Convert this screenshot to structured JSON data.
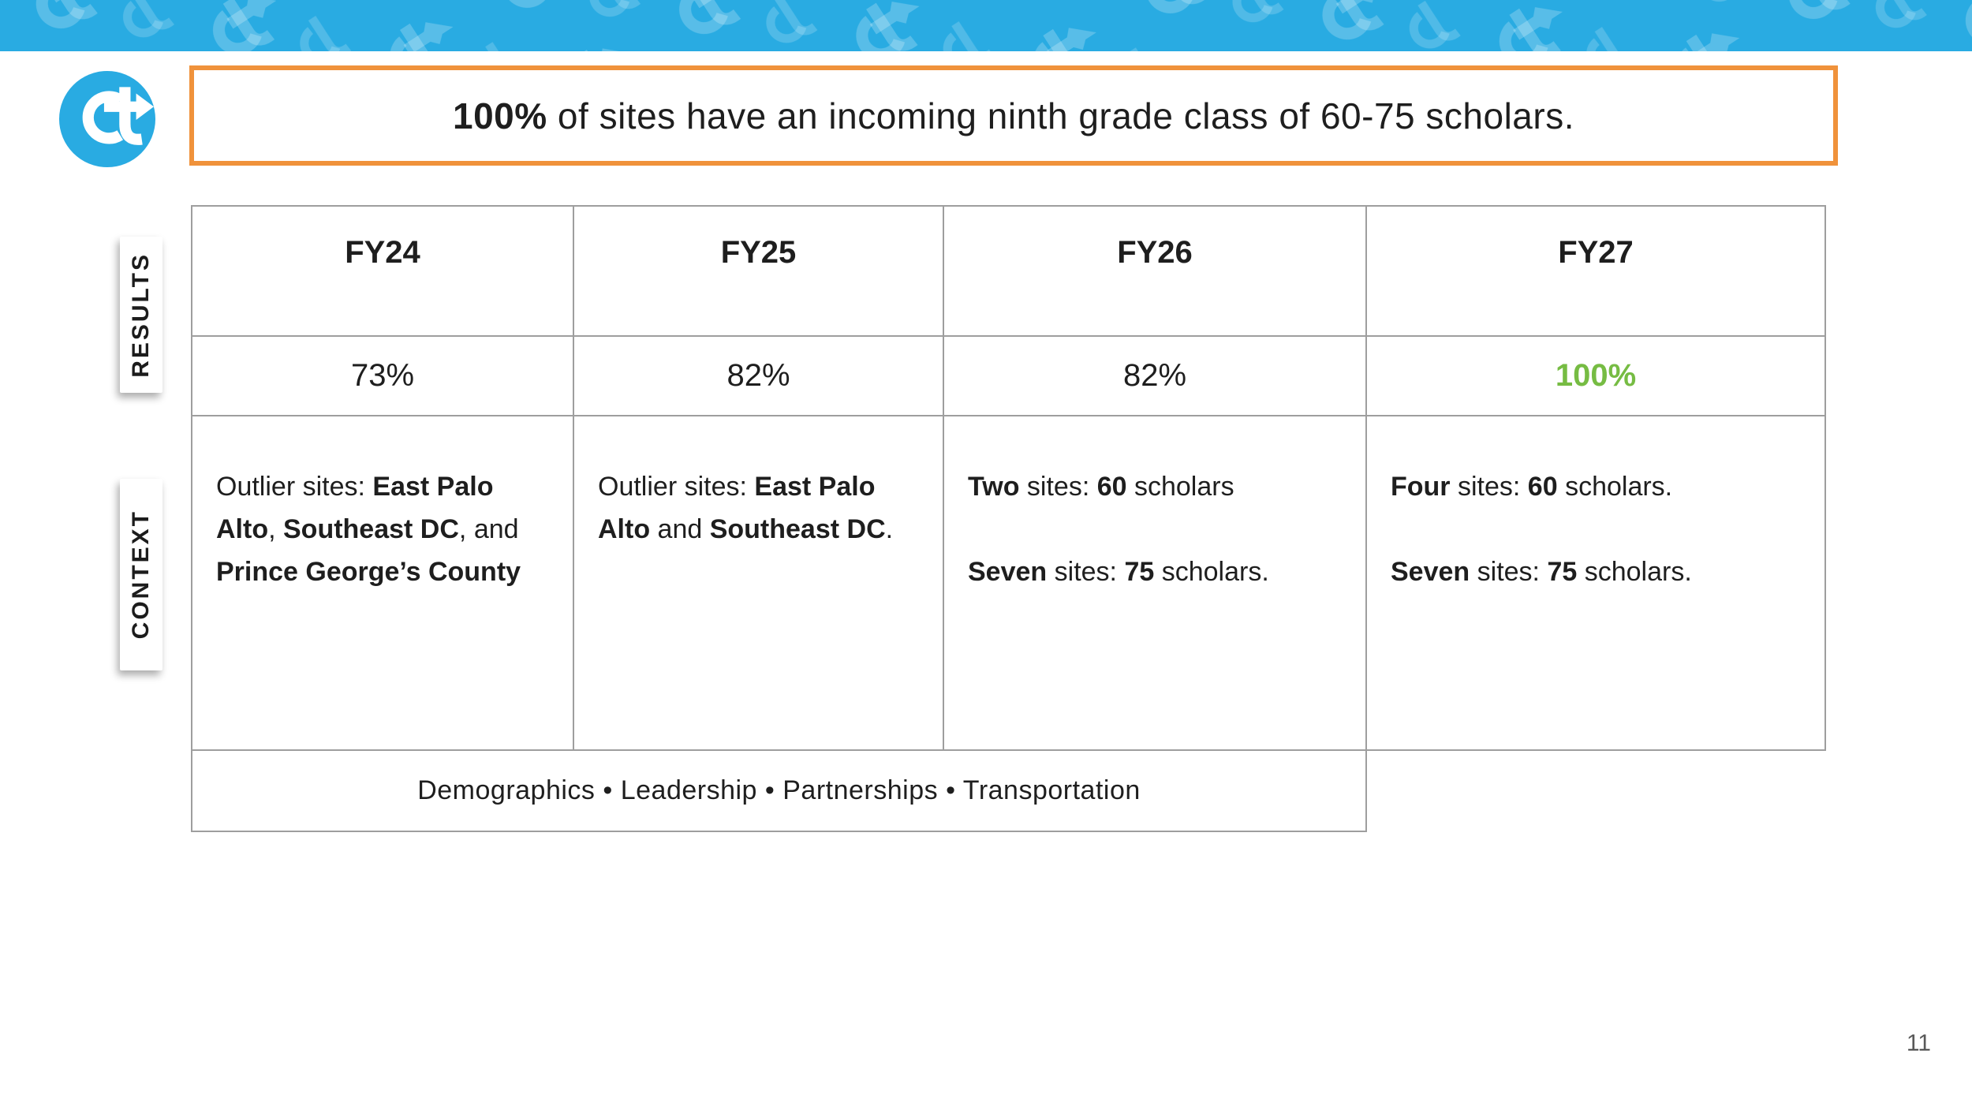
{
  "slide": {
    "title": {
      "bold": "100%",
      "rest": " of sites have an incoming ninth grade class of 60-75 scholars."
    },
    "page_number": "11",
    "logo_monogram": "ct"
  },
  "row_labels": {
    "results": "RESULTS",
    "context": "CONTEXT"
  },
  "table": {
    "columns": [
      "FY24",
      "FY25",
      "FY26",
      "FY27"
    ],
    "results": [
      {
        "value": "73%",
        "highlight": false
      },
      {
        "value": "82%",
        "highlight": false
      },
      {
        "value": "82%",
        "highlight": false
      },
      {
        "value": "100%",
        "highlight": true
      }
    ],
    "context": [
      [
        {
          "t": "Outlier sites: "
        },
        {
          "t": "East Palo Alto",
          "b": true
        },
        {
          "t": ", "
        },
        {
          "t": "Southeast DC",
          "b": true
        },
        {
          "t": ", and "
        },
        {
          "t": "Prince George’s County",
          "b": true
        }
      ],
      [
        {
          "t": "Outlier sites: "
        },
        {
          "t": "East Palo Alto",
          "b": true
        },
        {
          "t": " and "
        },
        {
          "t": "Southeast DC",
          "b": true
        },
        {
          "t": "."
        }
      ],
      [
        {
          "t": "Two",
          "b": true
        },
        {
          "t": " sites: "
        },
        {
          "t": "60",
          "b": true
        },
        {
          "t": " scholars"
        },
        {
          "br": true
        },
        {
          "t": "Seven",
          "b": true
        },
        {
          "t": " sites: "
        },
        {
          "t": "75",
          "b": true
        },
        {
          "t": " scholars."
        }
      ],
      [
        {
          "t": "Four",
          "b": true
        },
        {
          "t": " sites: "
        },
        {
          "t": "60",
          "b": true
        },
        {
          "t": " scholars."
        },
        {
          "br": true
        },
        {
          "t": "Seven",
          "b": true
        },
        {
          "t": " sites: "
        },
        {
          "t": "75",
          "b": true
        },
        {
          "t": " scholars."
        }
      ]
    ],
    "footer": "Demographics • Leadership • Partnerships • Transportation"
  },
  "colors": {
    "banner_blue": "#29ABE2",
    "logo_blue": "#29ABE2",
    "accent_orange": "#F0923B",
    "highlight_green": "#76BC43",
    "table_border_gray": "#9E9E9E"
  }
}
